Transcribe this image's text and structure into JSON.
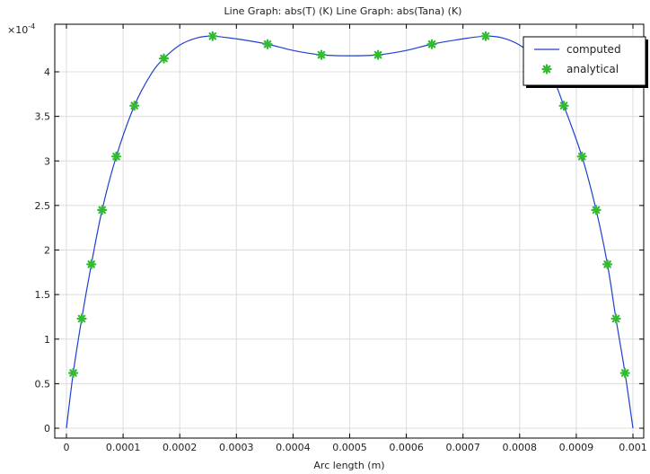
{
  "chart_data": {
    "type": "line",
    "title": "Line Graph: abs(T) (K)  Line Graph: abs(Tana) (K)",
    "xlabel": "Arc length (m)",
    "ylabel": "",
    "y_multiplier": "×10",
    "y_multiplier_exp": "-4",
    "xlim": [
      0,
      0.001
    ],
    "ylim": [
      0,
      0.00044
    ],
    "grid": true,
    "legend_position": "top-right",
    "x_ticks": [
      0,
      0.0001,
      0.0002,
      0.0003,
      0.0004,
      0.0005,
      0.0006,
      0.0007,
      0.0008,
      0.0009,
      0.001
    ],
    "x_tick_labels": [
      "0",
      "0.0001",
      "0.0002",
      "0.0003",
      "0.0004",
      "0.0005",
      "0.0006",
      "0.0007",
      "0.0008",
      "0.0009",
      "0.001"
    ],
    "y_ticks": [
      0,
      5e-05,
      0.0001,
      0.00015,
      0.0002,
      0.00025,
      0.0003,
      0.00035,
      0.0004
    ],
    "y_tick_labels": [
      "0",
      "0.5",
      "1",
      "1.5",
      "2",
      "2.5",
      "3",
      "3.5",
      "4"
    ],
    "series": [
      {
        "name": "computed",
        "style": "line",
        "color": "#1f3fd1",
        "x": [
          0,
          1.2e-05,
          2.7e-05,
          4.4e-05,
          6.3e-05,
          8.8e-05,
          0.00012,
          0.00015,
          0.000172,
          0.0002,
          0.00023,
          0.000258,
          0.0003,
          0.000355,
          0.0004,
          0.00045,
          0.0005,
          0.00055,
          0.0006,
          0.000645,
          0.0007,
          0.00074,
          0.00077,
          0.0008,
          0.00083,
          0.000855,
          0.000878,
          0.00091,
          0.000935,
          0.000955,
          0.00097,
          0.000986,
          0.001
        ],
        "y": [
          0,
          6.2e-05,
          0.000123,
          0.000184,
          0.000245,
          0.000305,
          0.000362,
          0.000398,
          0.000415,
          0.00043,
          0.000438,
          0.00044,
          0.000437,
          0.000431,
          0.000424,
          0.000419,
          0.000418,
          0.000419,
          0.000424,
          0.000431,
          0.000437,
          0.00044,
          0.000438,
          0.00043,
          0.000415,
          0.000398,
          0.000362,
          0.000305,
          0.000245,
          0.000184,
          0.000123,
          6.2e-05,
          0
        ]
      },
      {
        "name": "analytical",
        "style": "markers",
        "color": "#33bb33",
        "x": [
          1.2e-05,
          2.7e-05,
          4.4e-05,
          6.3e-05,
          8.8e-05,
          0.00012,
          0.000172,
          0.000258,
          0.000355,
          0.00045,
          0.00055,
          0.000645,
          0.00074,
          0.000878,
          0.00091,
          0.000935,
          0.000955,
          0.00097,
          0.000986
        ],
        "y": [
          6.2e-05,
          0.000123,
          0.000184,
          0.000245,
          0.000305,
          0.000362,
          0.000415,
          0.00044,
          0.000431,
          0.000419,
          0.000419,
          0.000431,
          0.00044,
          0.000362,
          0.000305,
          0.000245,
          0.000184,
          0.000123,
          6.2e-05
        ]
      }
    ]
  }
}
